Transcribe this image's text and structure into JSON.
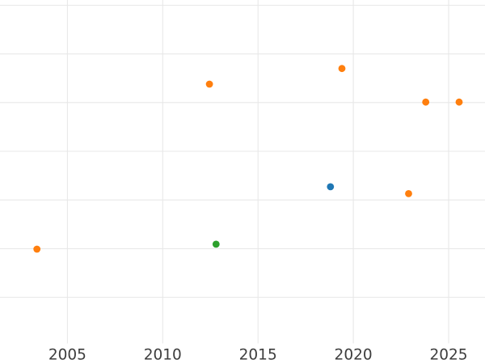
{
  "chart_data": {
    "type": "scatter",
    "title": "",
    "xlabel": "",
    "ylabel": "",
    "legend": "none",
    "grid": true,
    "x_axis": {
      "tick_labels": [
        "2005",
        "2010",
        "2015",
        "2020",
        "2025"
      ],
      "tick_values": [
        2005,
        2010,
        2015,
        2020,
        2025
      ],
      "visible_range": [
        2001.5,
        2026.9
      ]
    },
    "y_axis": {
      "tick_labels_visible": false,
      "unit": "gridline-index (y tick labels are cropped out of view)",
      "gridline_values": [
        1,
        2,
        3,
        4,
        5,
        6,
        7
      ],
      "visible_range": [
        0.05,
        7.1
      ]
    },
    "series": [
      {
        "name": "orange",
        "color": "#ff7f0e",
        "points": [
          {
            "x": 2003.4,
            "y": 1.99
          },
          {
            "x": 2012.45,
            "y": 5.38
          },
          {
            "x": 2019.4,
            "y": 5.7
          },
          {
            "x": 2022.9,
            "y": 3.13
          },
          {
            "x": 2023.8,
            "y": 5.01
          },
          {
            "x": 2025.55,
            "y": 5.01
          }
        ]
      },
      {
        "name": "blue",
        "color": "#1f77b4",
        "points": [
          {
            "x": 2018.8,
            "y": 3.27
          }
        ]
      },
      {
        "name": "green",
        "color": "#2ca02c",
        "points": [
          {
            "x": 2012.8,
            "y": 2.09
          }
        ]
      }
    ],
    "style": {
      "background_color": "#ffffff",
      "gridline_color": "#e8e8e8",
      "tick_label_color": "#3d3d3d",
      "marker_radius_px": 4.4
    }
  }
}
